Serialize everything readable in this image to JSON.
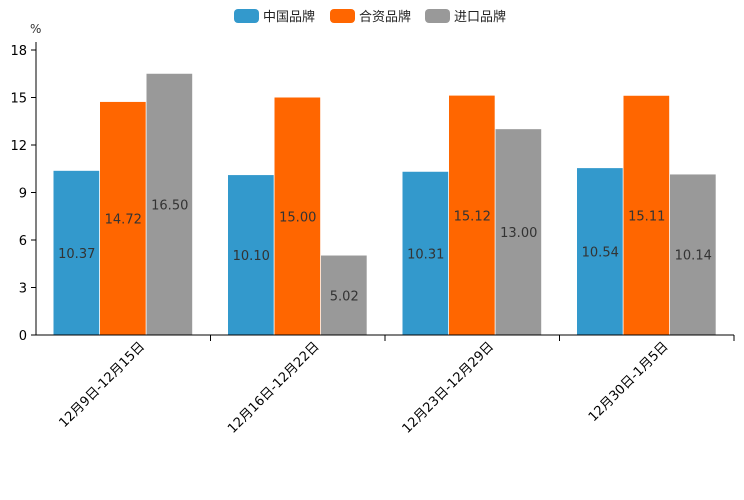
{
  "chart_data": {
    "type": "bar",
    "title": "",
    "xlabel": "",
    "ylabel": "%",
    "ylim": [
      0,
      18
    ],
    "yticks": [
      0,
      3,
      6,
      9,
      12,
      15,
      18
    ],
    "grid": false,
    "legend_position": "top-center",
    "categories": [
      "12月9日-12月15日",
      "12月16日-12月22日",
      "12月23日-12月29日",
      "12月30日-1月5日"
    ],
    "series": [
      {
        "name": "中国品牌",
        "color": "#3399CC",
        "values": [
          10.37,
          10.1,
          10.31,
          10.54
        ],
        "labels": [
          "10.37",
          "10.10",
          "10.31",
          "10.54"
        ]
      },
      {
        "name": "合资品牌",
        "color": "#FF6600",
        "values": [
          14.72,
          15.0,
          15.12,
          15.11
        ],
        "labels": [
          "14.72",
          "15.00",
          "15.12",
          "15.11"
        ]
      },
      {
        "name": "进口品牌",
        "color": "#999999",
        "values": [
          16.5,
          5.02,
          13.0,
          10.14
        ],
        "labels": [
          "16.50",
          "5.02",
          "13.00",
          "10.14"
        ]
      }
    ]
  }
}
